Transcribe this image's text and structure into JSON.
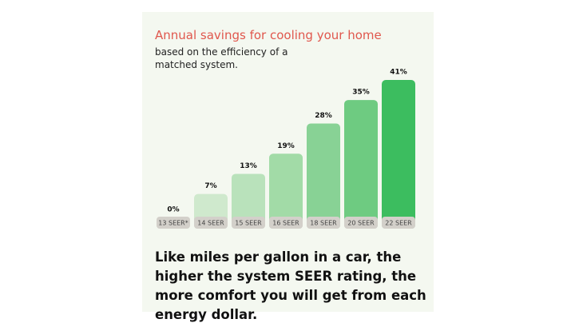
{
  "chart_data": {
    "type": "bar",
    "title": "Annual savings for cooling your home",
    "subtitle": "based on the efficiency of a matched system.",
    "categories": [
      "13 SEER*",
      "14 SEER",
      "15 SEER",
      "16 SEER",
      "18 SEER",
      "20 SEER",
      "22 SEER"
    ],
    "values": [
      0,
      7,
      13,
      19,
      28,
      35,
      41
    ],
    "value_labels": [
      "0%",
      "7%",
      "13%",
      "19%",
      "28%",
      "35%",
      "41%"
    ],
    "colors": [
      "#e4f1e1",
      "#cfe9cd",
      "#b9e2bb",
      "#a2dba7",
      "#88d295",
      "#6ecb81",
      "#3cbd5f"
    ],
    "caption": "Like miles per gallon in a car, the higher the system SEER rating, the more comfort you will get from each energy dollar."
  }
}
